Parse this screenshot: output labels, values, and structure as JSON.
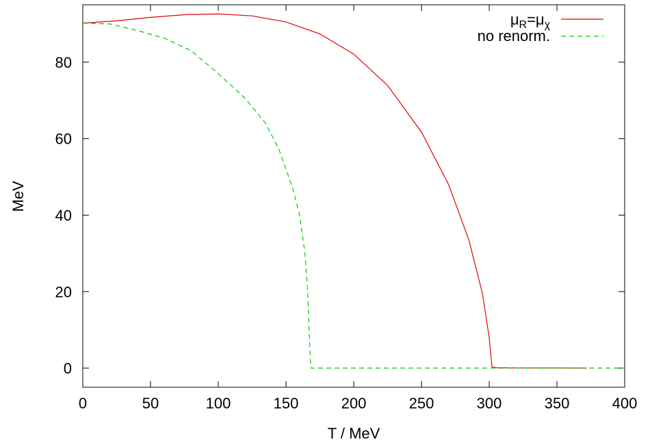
{
  "chart_data": {
    "type": "line",
    "title": "",
    "xlabel": "T / MeV",
    "ylabel": "MeV",
    "xlim": [
      0,
      400
    ],
    "ylim": [
      -5,
      95
    ],
    "xticks": [
      0,
      50,
      100,
      150,
      200,
      250,
      300,
      350,
      400
    ],
    "yticks": [
      0,
      20,
      40,
      60,
      80
    ],
    "grid": false,
    "legend_position": "top-right",
    "series": [
      {
        "name": "μR=μχ",
        "legend_main": "μ",
        "legend_sub1": "R",
        "legend_eq": "=μ",
        "legend_sub2": "χ",
        "color": "#e00000",
        "dash": "solid",
        "x": [
          0,
          25,
          50,
          75,
          100,
          125,
          150,
          175,
          200,
          225,
          250,
          270,
          285,
          295,
          300,
          302,
          305,
          320,
          350,
          372
        ],
        "y": [
          90.2,
          90.8,
          91.7,
          92.4,
          92.6,
          92.1,
          90.5,
          87.4,
          82.1,
          73.9,
          61.7,
          48.0,
          33.5,
          19.5,
          8.0,
          0.3,
          0.1,
          0.05,
          0.02,
          0.0
        ]
      },
      {
        "name": "no renorm.",
        "color": "#00cc00",
        "dash": "dashed",
        "x": [
          0,
          20,
          40,
          60,
          80,
          100,
          120,
          135,
          145,
          155,
          160,
          164,
          166,
          167,
          168,
          168.5,
          200,
          250,
          300,
          350,
          400
        ],
        "y": [
          90.2,
          90.0,
          88.3,
          86.3,
          83.0,
          77.0,
          70.5,
          64.0,
          57.0,
          47.0,
          40.0,
          30.0,
          20.0,
          10.0,
          2.0,
          0.0,
          0.0,
          0.0,
          0.0,
          0.0,
          0.0
        ]
      }
    ]
  }
}
